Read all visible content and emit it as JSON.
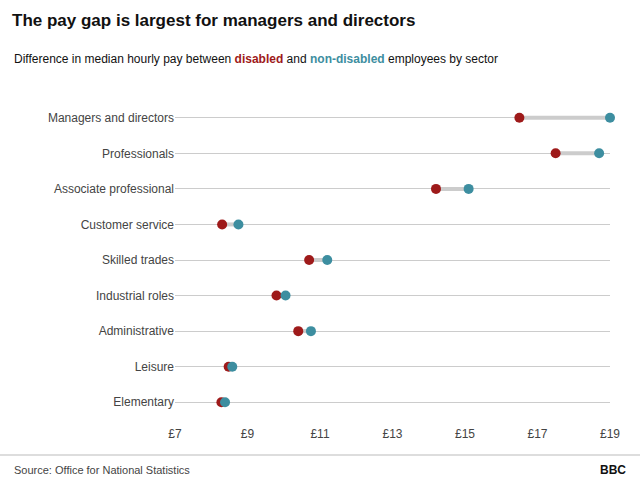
{
  "chart_data": {
    "type": "dumbbell",
    "title": "The pay gap is largest for managers and directors",
    "subtitle": "Difference in median hourly pay between disabled and non-disabled employees by sector",
    "annotations": [
      "Source: Office for National Statistics",
      "BBC"
    ],
    "categories": [
      "Managers and directors",
      "Professionals",
      "Associate professional",
      "Customer service",
      "Skilled trades",
      "Industrial roles",
      "Administrative",
      "Leisure",
      "Elementary"
    ],
    "series": [
      {
        "name": "disabled",
        "color": "#9e1a1a",
        "values": [
          16.5,
          17.5,
          14.2,
          8.3,
          10.7,
          9.8,
          10.4,
          8.48,
          8.28
        ]
      },
      {
        "name": "non-disabled",
        "color": "#3d8ea0",
        "values": [
          19.0,
          18.7,
          15.1,
          8.75,
          11.2,
          10.05,
          10.75,
          8.58,
          8.38
        ]
      }
    ],
    "xlim": [
      7,
      19
    ],
    "xticks": [
      {
        "value": 7,
        "label": "£7"
      },
      {
        "value": 9,
        "label": "£9"
      },
      {
        "value": 11,
        "label": "£11"
      },
      {
        "value": 13,
        "label": "£13"
      },
      {
        "value": 15,
        "label": "£15"
      },
      {
        "value": 17,
        "label": "£17"
      },
      {
        "value": 19,
        "label": "£19"
      }
    ],
    "grid": true
  }
}
